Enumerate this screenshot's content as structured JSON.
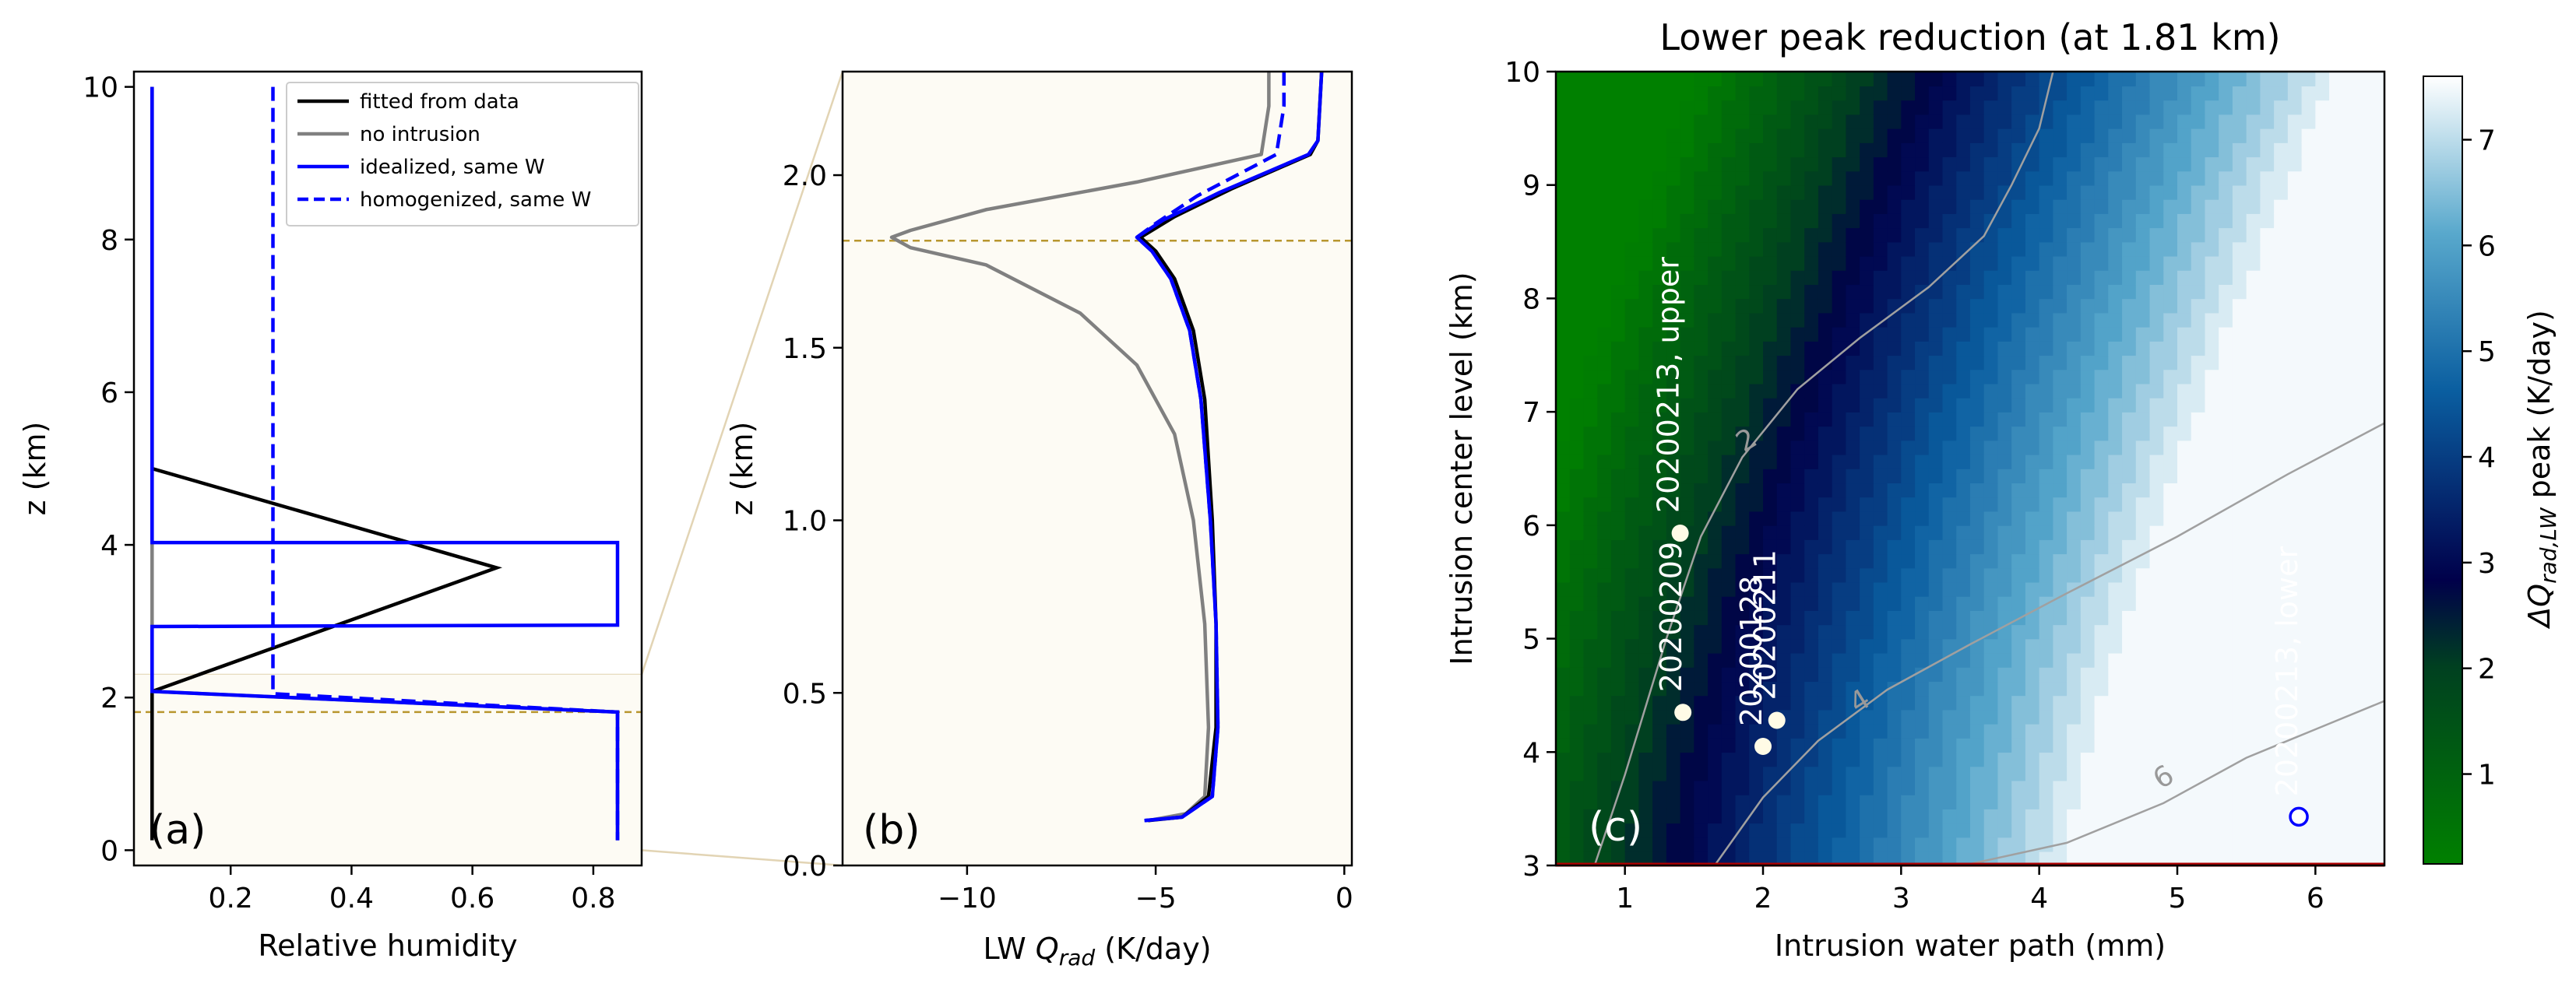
{
  "colors": {
    "fitted": "#000000",
    "no_intrusion": "#808080",
    "idealized": "#0000ff",
    "homogenized": "#0000ff",
    "peak_line": "#b8962e",
    "shade": "#fdfbf4",
    "zoom_lines": "#e2d4b4",
    "contour": "#a0a0a0",
    "bottom_line": "#b00000",
    "cmap_low": "#008000",
    "cmap_mid": "#00004a",
    "cmap_high": "#ffffff"
  },
  "chart_data": [
    {
      "type": "line",
      "panel": "(a)",
      "xlabel": "Relative humidity",
      "ylabel": "z (km)",
      "xlim": [
        0.04,
        0.88
      ],
      "ylim": [
        -0.2,
        10.2
      ],
      "xticks": [
        0.2,
        0.4,
        0.6,
        0.8
      ],
      "xticklabels": [
        "0.2",
        "0.4",
        "0.6",
        "0.8"
      ],
      "yticks": [
        0,
        2,
        4,
        6,
        8,
        10
      ],
      "yticklabels": [
        "0",
        "2",
        "4",
        "6",
        "8",
        "10"
      ],
      "shaded_band": [
        0,
        2.3
      ],
      "peak_level": 1.81,
      "legend": "top-right",
      "series": [
        {
          "name": "fitted from data",
          "color": "#000000",
          "dash": "none",
          "points": [
            [
              0.07,
              10
            ],
            [
              0.07,
              5.0
            ],
            [
              0.64,
              3.7
            ],
            [
              0.07,
              2.08
            ],
            [
              0.07,
              0.13
            ]
          ]
        },
        {
          "name": "no intrusion",
          "color": "#808080",
          "dash": "none",
          "points": [
            [
              0.07,
              10
            ],
            [
              0.07,
              2.08
            ],
            [
              0.84,
              1.81
            ],
            [
              0.84,
              0.13
            ]
          ]
        },
        {
          "name": "idealized, same W",
          "color": "#0000ff",
          "dash": "none",
          "points": [
            [
              0.07,
              10
            ],
            [
              0.07,
              4.03
            ],
            [
              0.84,
              4.03
            ],
            [
              0.84,
              2.95
            ],
            [
              0.07,
              2.93
            ],
            [
              0.07,
              2.08
            ],
            [
              0.84,
              1.81
            ],
            [
              0.84,
              0.13
            ]
          ]
        },
        {
          "name": "homogenized, same W",
          "color": "#0000ff",
          "dash": "dash",
          "points": [
            [
              0.27,
              10
            ],
            [
              0.27,
              2.05
            ],
            [
              0.84,
              1.81
            ],
            [
              0.84,
              0.13
            ]
          ]
        }
      ]
    },
    {
      "type": "line",
      "panel": "(b)",
      "xlabel_pre": "LW ",
      "xlabel_q": "Q",
      "xlabel_sub": "rad",
      "xlabel_post": " (K/day)",
      "ylabel": "z (km)",
      "xlim": [
        -13.3,
        0.2
      ],
      "ylim": [
        0,
        2.3
      ],
      "xticks": [
        -10,
        -5,
        0
      ],
      "xticklabels": [
        "−10",
        "−5",
        "0"
      ],
      "yticks": [
        0,
        0.5,
        1.0,
        1.5,
        2.0
      ],
      "yticklabels": [
        "0.0",
        "0.5",
        "1.0",
        "1.5",
        "2.0"
      ],
      "peak_level": 1.81,
      "series": [
        {
          "name": "no intrusion",
          "color": "#808080",
          "dash": "none",
          "points": [
            [
              -2.0,
              2.3
            ],
            [
              -2.0,
              2.2
            ],
            [
              -2.2,
              2.06
            ],
            [
              -5.5,
              1.98
            ],
            [
              -9.5,
              1.9
            ],
            [
              -11.5,
              1.84
            ],
            [
              -12.0,
              1.82
            ],
            [
              -11.5,
              1.79
            ],
            [
              -9.5,
              1.74
            ],
            [
              -7.0,
              1.6
            ],
            [
              -5.5,
              1.45
            ],
            [
              -4.5,
              1.25
            ],
            [
              -4.0,
              1.0
            ],
            [
              -3.7,
              0.7
            ],
            [
              -3.6,
              0.4
            ],
            [
              -3.7,
              0.2
            ],
            [
              -4.2,
              0.15
            ],
            [
              -5.2,
              0.13
            ]
          ]
        },
        {
          "name": "fitted from data",
          "color": "#000000",
          "dash": "none",
          "points": [
            [
              -0.6,
              2.3
            ],
            [
              -0.7,
              2.1
            ],
            [
              -0.9,
              2.06
            ],
            [
              -3.0,
              1.96
            ],
            [
              -4.5,
              1.88
            ],
            [
              -5.4,
              1.82
            ],
            [
              -5.0,
              1.78
            ],
            [
              -4.5,
              1.7
            ],
            [
              -4.0,
              1.55
            ],
            [
              -3.7,
              1.35
            ],
            [
              -3.5,
              1.0
            ],
            [
              -3.4,
              0.7
            ],
            [
              -3.4,
              0.4
            ],
            [
              -3.6,
              0.2
            ],
            [
              -4.3,
              0.14
            ],
            [
              -5.2,
              0.13
            ]
          ]
        },
        {
          "name": "idealized, same W",
          "color": "#0000ff",
          "dash": "none",
          "points": [
            [
              -0.6,
              2.3
            ],
            [
              -0.7,
              2.1
            ],
            [
              -0.95,
              2.06
            ],
            [
              -3.3,
              1.95
            ],
            [
              -4.8,
              1.87
            ],
            [
              -5.5,
              1.82
            ],
            [
              -5.1,
              1.78
            ],
            [
              -4.6,
              1.7
            ],
            [
              -4.1,
              1.55
            ],
            [
              -3.8,
              1.35
            ],
            [
              -3.55,
              1.0
            ],
            [
              -3.4,
              0.7
            ],
            [
              -3.35,
              0.4
            ],
            [
              -3.5,
              0.2
            ],
            [
              -4.3,
              0.14
            ],
            [
              -5.3,
              0.13
            ]
          ]
        },
        {
          "name": "homogenized, same W",
          "color": "#0000ff",
          "dash": "dash",
          "points": [
            [
              -1.6,
              2.3
            ],
            [
              -1.6,
              2.2
            ],
            [
              -1.8,
              2.06
            ],
            [
              -3.9,
              1.94
            ],
            [
              -5.0,
              1.86
            ],
            [
              -5.5,
              1.82
            ],
            [
              -5.1,
              1.78
            ],
            [
              -4.6,
              1.7
            ],
            [
              -4.1,
              1.55
            ],
            [
              -3.8,
              1.35
            ],
            [
              -3.55,
              1.0
            ],
            [
              -3.4,
              0.7
            ],
            [
              -3.35,
              0.4
            ],
            [
              -3.5,
              0.2
            ],
            [
              -4.3,
              0.14
            ],
            [
              -5.3,
              0.13
            ]
          ]
        }
      ]
    },
    {
      "type": "heatmap",
      "panel": "(c)",
      "title": "Lower peak reduction (at 1.81 km)",
      "xlabel": "Intrusion water path (mm)",
      "ylabel": "Intrusion center level (km)",
      "xlim": [
        0.5,
        6.5
      ],
      "ylim": [
        3,
        10
      ],
      "xticks": [
        1,
        2,
        3,
        4,
        5,
        6
      ],
      "xticklabels": [
        "1",
        "2",
        "3",
        "4",
        "5",
        "6"
      ],
      "yticks": [
        3,
        4,
        5,
        6,
        7,
        8,
        9,
        10
      ],
      "yticklabels": [
        "3",
        "4",
        "5",
        "6",
        "7",
        "8",
        "9",
        "10"
      ],
      "colorbar": {
        "label_pre": "ΔQ",
        "label_sub": "rad,LW",
        "label_post": " peak (K/day)",
        "range": [
          0.15,
          7.6
        ],
        "ticks": [
          1,
          2,
          3,
          4,
          5,
          6,
          7
        ],
        "ticklabels": [
          "1",
          "2",
          "3",
          "4",
          "5",
          "6",
          "7"
        ]
      },
      "contours": [
        {
          "level": 2,
          "label": "2",
          "points": [
            [
              0.78,
              3.0
            ],
            [
              1.0,
              3.8
            ],
            [
              1.3,
              5.0
            ],
            [
              1.55,
              5.9
            ],
            [
              1.85,
              6.6
            ],
            [
              2.25,
              7.2
            ],
            [
              2.7,
              7.65
            ],
            [
              3.2,
              8.1
            ],
            [
              3.6,
              8.55
            ],
            [
              3.8,
              9.0
            ],
            [
              4.0,
              9.5
            ],
            [
              4.1,
              10.0
            ]
          ],
          "label_at": [
            1.88,
            6.75
          ]
        },
        {
          "level": 4,
          "label": "4",
          "points": [
            [
              1.65,
              3.0
            ],
            [
              2.0,
              3.6
            ],
            [
              2.4,
              4.1
            ],
            [
              2.9,
              4.55
            ],
            [
              3.5,
              4.95
            ],
            [
              4.2,
              5.4
            ],
            [
              5.0,
              5.9
            ],
            [
              5.8,
              6.45
            ],
            [
              6.5,
              6.9
            ]
          ],
          "label_at": [
            2.7,
            4.45
          ]
        },
        {
          "level": 6,
          "label": "6",
          "points": [
            [
              3.45,
              3.0
            ],
            [
              4.2,
              3.2
            ],
            [
              4.9,
              3.55
            ],
            [
              5.5,
              3.95
            ],
            [
              6.0,
              4.2
            ],
            [
              6.5,
              4.45
            ]
          ],
          "label_at": [
            4.9,
            3.78
          ]
        }
      ],
      "points": [
        {
          "label": "20200213, upper",
          "x": 1.4,
          "y": 5.93,
          "style": "filled"
        },
        {
          "label": "20200209",
          "x": 1.42,
          "y": 4.35,
          "style": "filled"
        },
        {
          "label": "20200128",
          "x": 2.0,
          "y": 4.05,
          "style": "filled"
        },
        {
          "label": "20200211",
          "x": 2.1,
          "y": 4.28,
          "style": "filled"
        },
        {
          "label": "20200213, lower",
          "x": 5.88,
          "y": 3.43,
          "style": "open"
        }
      ]
    }
  ]
}
